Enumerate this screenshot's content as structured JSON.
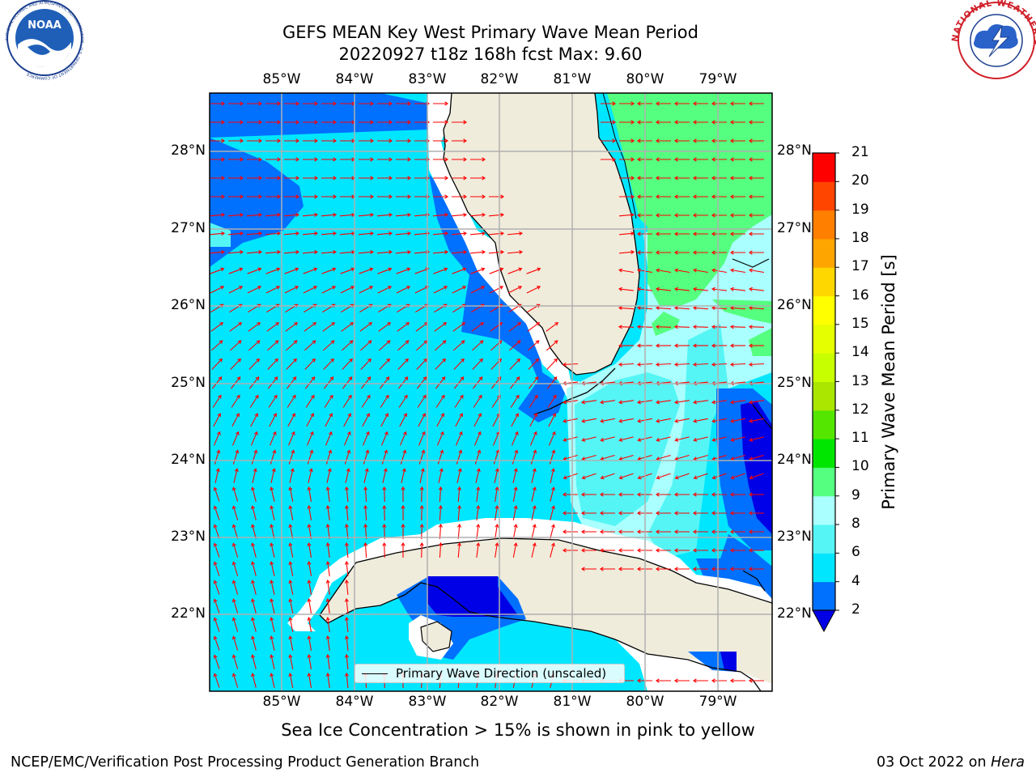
{
  "header": {
    "title_line1": "GEFS MEAN Key West Primary Wave Mean Period",
    "title_line2": "20220927 t18z 168h fcst   Max: 9.60"
  },
  "logos": {
    "left": {
      "text": "NOAA",
      "ring_text": "NATIONAL OCEANIC AND ATMOSPHERIC ADMINISTRATION · U.S. DEPARTMENT OF COMMERCE"
    },
    "right": {
      "ring_text": "NATIONAL WEATHER SERVICE"
    }
  },
  "map": {
    "lon_labels": [
      "85°W",
      "84°W",
      "83°W",
      "82°W",
      "81°W",
      "80°W",
      "79°W"
    ],
    "lat_labels": [
      "28°N",
      "27°N",
      "26°N",
      "25°N",
      "24°N",
      "23°N",
      "22°N"
    ],
    "legend_label": "Primary Wave Direction (unscaled)",
    "colors": {
      "land": "#efecdc",
      "arrow": "#ff0000",
      "gridline": "#b0b0b0"
    }
  },
  "colorbar": {
    "label": "Primary Wave Mean Period [s]",
    "ticks": [
      "2",
      "4",
      "6",
      "8",
      "9",
      "10",
      "11",
      "12",
      "13",
      "14",
      "15",
      "16",
      "17",
      "18",
      "19",
      "20",
      "21"
    ],
    "colors": [
      "#0000e6",
      "#0070ff",
      "#00e6ff",
      "#55f5f5",
      "#aaffff",
      "#55ff7f",
      "#00e600",
      "#55e600",
      "#aae600",
      "#c8ff00",
      "#e6ff00",
      "#ffff00",
      "#ffd700",
      "#ffa500",
      "#ff7f00",
      "#ff4500",
      "#ff0000"
    ]
  },
  "footer": {
    "note": "Sea Ice Concentration > 15% is shown in pink to yellow",
    "left": "NCEP/EMC/Verification Post Processing Product Generation Branch",
    "date": "03 Oct 2022 on ",
    "machine": "Hera"
  }
}
